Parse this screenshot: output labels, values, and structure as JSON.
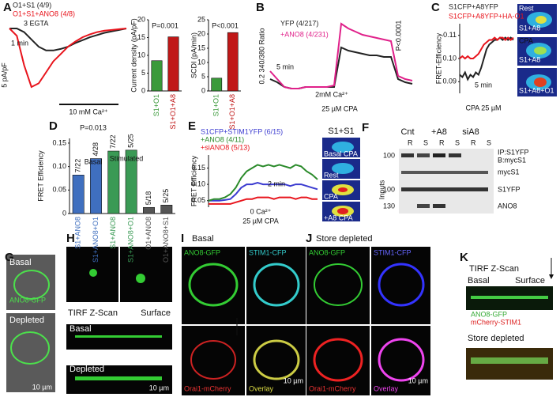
{
  "panel_labels": [
    "A",
    "B",
    "C",
    "D",
    "E",
    "F",
    "G",
    "H",
    "I",
    "J",
    "K"
  ],
  "chart_data": [
    {
      "type": "line",
      "annotations": [
        "1 min",
        "5 pA/pF",
        "3 EGTA",
        "10 mM Ca²⁺"
      ],
      "x": [
        0,
        1,
        2,
        3,
        4,
        5,
        6,
        7,
        8,
        9,
        10,
        11,
        12,
        13,
        14,
        15,
        16
      ],
      "series": [
        {
          "name": "O1+S1 (4/9)",
          "color": "#222222",
          "values": [
            0,
            0,
            -0.5,
            -1.5,
            -2.5,
            -3,
            -3,
            -2.8,
            -2.5,
            -2,
            -1.6,
            -1.2,
            -0.9,
            -0.6,
            -0.4,
            -0.2,
            0
          ]
        },
        {
          "name": "O1+S1+ANO8 (4/8)",
          "color": "#e8141c",
          "values": [
            0,
            -1,
            -5,
            -8,
            -7.5,
            -6,
            -4.5,
            -3.5,
            -2.5,
            -1.8,
            -1.2,
            -0.8,
            -0.5,
            -0.3,
            -0.2,
            -0.1,
            0
          ]
        }
      ]
    },
    {
      "type": "bar",
      "ylabel": "Current density (pA/pF)",
      "annotation": "P=0.001",
      "categories": [
        "S1+O1",
        "S1+O1+A8"
      ],
      "values": [
        8.5,
        15.2
      ],
      "colors": [
        "#3a9a3a",
        "#c01818"
      ],
      "ylim": [
        0,
        20
      ],
      "yticks": [
        0,
        5,
        10,
        15,
        20
      ]
    },
    {
      "type": "bar",
      "ylabel": "SCDI (pA/min)",
      "annotation": "P<0.001",
      "categories": [
        "S1+O1",
        "S1+O1+A8"
      ],
      "values": [
        4.5,
        20.5
      ],
      "colors": [
        "#3a9a3a",
        "#c01818"
      ],
      "ylim": [
        0,
        25
      ],
      "yticks": [
        0,
        5,
        10,
        15,
        20,
        25
      ]
    },
    {
      "type": "line",
      "ylabel": "0.2 340/380 Ratio",
      "annotations": [
        "P<0.0001",
        "5 min",
        "2mM Ca²⁺",
        "25 µM CPA"
      ],
      "x": [
        0,
        1,
        2,
        3,
        4,
        5,
        6,
        7,
        8,
        9,
        10,
        11,
        12,
        13,
        14,
        15,
        16,
        17,
        18,
        19,
        20
      ],
      "series": [
        {
          "name": "YFP (4/217)",
          "color": "#222222",
          "values": [
            0.1,
            0.08,
            0.05,
            0.04,
            0.04,
            0.05,
            0.05,
            0.05,
            0.05,
            0.05,
            0.3,
            0.28,
            0.27,
            0.26,
            0.25,
            0.25,
            0.24,
            0.24,
            0.1,
            0.08,
            0.07
          ]
        },
        {
          "name": "+ANO8 (4/231)",
          "color": "#e0218a",
          "values": [
            0.15,
            0.1,
            0.05,
            0.04,
            0.04,
            0.05,
            0.05,
            0.05,
            0.05,
            0.06,
            0.45,
            0.42,
            0.4,
            0.38,
            0.37,
            0.36,
            0.35,
            0.34,
            0.12,
            0.1,
            0.09
          ]
        }
      ]
    },
    {
      "type": "line",
      "ylabel": "FRET-Efficiency",
      "annotations": [
        "5 min",
        "CPA 25 µM"
      ],
      "x": [
        0,
        1,
        2,
        3,
        4,
        5,
        6,
        7,
        8,
        9,
        10,
        11,
        12,
        13,
        14,
        15,
        16,
        17,
        18,
        19,
        20
      ],
      "ylim": [
        0.085,
        0.115
      ],
      "yticks": [
        0.09,
        {
          "value": 0.1,
          "label": "0.10"
        },
        0.11
      ],
      "series": [
        {
          "name": "S1CFP+A8YFP",
          "color": "#222222",
          "values": [
            0.093,
            0.092,
            0.094,
            0.091,
            0.093,
            0.092,
            0.094,
            0.093,
            0.096,
            0.1,
            0.104,
            0.106,
            0.107,
            0.108,
            0.108,
            0.109,
            0.108,
            0.109,
            0.108,
            0.109,
            0.108
          ]
        },
        {
          "name": "S1CFP+A8YFP+HA-O1",
          "color": "#e8141c",
          "values": [
            0.1,
            0.101,
            0.1,
            0.101,
            0.1,
            0.1,
            0.101,
            0.102,
            0.104,
            0.106,
            0.107,
            0.108,
            0.108,
            0.109,
            0.108,
            0.109,
            0.109,
            0.108,
            0.109,
            0.108,
            0.109
          ]
        }
      ]
    },
    {
      "type": "bar",
      "ylabel": "FRET Efficiency",
      "annotations": [
        "P=0.013",
        "Basal",
        "Stimulated"
      ],
      "categories": [
        "S1+ANO8",
        "S1+ANO8+O1",
        "S1+ANO8",
        "S1+ANO8+O1",
        "O1+ANO8",
        "O1+ANO8+S1"
      ],
      "values": [
        0.082,
        0.117,
        0.133,
        0.135,
        0.013,
        0.018
      ],
      "n_labels": [
        "7/22",
        "4/28",
        "7/22",
        "5/25",
        "5/18",
        "5/25"
      ],
      "colors": [
        "#3f6fbf",
        "#3f6fbf",
        "#3a9a55",
        "#3a9a55",
        "#555555",
        "#555555"
      ],
      "ylim": [
        0,
        0.16
      ],
      "yticks": [
        0,
        0.05,
        {
          "value": 0.1,
          "label": "0.10"
        },
        0.15
      ]
    },
    {
      "type": "line",
      "ylabel": "FRET Efficiency",
      "annotations": [
        "2 min",
        "0 Ca²⁺",
        "25 µM CPA"
      ],
      "x": [
        0,
        1,
        2,
        3,
        4,
        5,
        6,
        7,
        8,
        9,
        10,
        11,
        12,
        13,
        14,
        15,
        16,
        17,
        18,
        19,
        20
      ],
      "ylim": [
        0.03,
        0.19
      ],
      "yticks": [
        0.05,
        {
          "value": 0.1,
          "label": "0.10"
        },
        0.15
      ],
      "series": [
        {
          "name": "S1CFP+STIM1YFP (6/15)",
          "color": "#3b3bd0",
          "values": [
            0.05,
            0.05,
            0.05,
            0.052,
            0.055,
            0.07,
            0.09,
            0.1,
            0.1,
            0.105,
            0.1,
            0.1,
            0.1,
            0.1,
            0.1,
            0.095,
            0.1,
            0.1,
            0.095,
            0.09,
            0.085
          ]
        },
        {
          "name": "+ANO8 (4/11)",
          "color": "#2a8a2a",
          "values": [
            0.05,
            0.055,
            0.055,
            0.06,
            0.07,
            0.09,
            0.12,
            0.14,
            0.15,
            0.16,
            0.155,
            0.16,
            0.155,
            0.16,
            0.155,
            0.15,
            0.16,
            0.155,
            0.14,
            0.13,
            0.115
          ]
        },
        {
          "name": "+siANO8 (5/13)",
          "color": "#e8141c",
          "values": [
            0.04,
            0.04,
            0.04,
            0.04,
            0.04,
            0.045,
            0.05,
            0.055,
            0.055,
            0.06,
            0.06,
            0.06,
            0.055,
            0.06,
            0.06,
            0.06,
            0.055,
            0.06,
            0.06,
            0.055,
            0.055
          ]
        }
      ]
    }
  ],
  "panel_C_images": [
    "Rest",
    "S1+A8",
    "CPA",
    "S1+A8",
    "S1+A8+O1"
  ],
  "panel_E_images": {
    "title": "S1+S1",
    "labels": [
      "Basal CPA",
      "Rest",
      "CPA",
      "+A8 CPA"
    ]
  },
  "panel_F": {
    "lanes": [
      "Cnt",
      "+A8",
      "siA8"
    ],
    "sublanes": [
      "R",
      "S",
      "R",
      "S",
      "R",
      "S"
    ],
    "markers": [
      "100",
      "100",
      "130"
    ],
    "rows": [
      "IP:S1YFP",
      "B:mycS1",
      "mycS1",
      "S1YFP",
      "ANO8"
    ],
    "side": "Inputs"
  },
  "panel_G": {
    "labels": [
      "Basal",
      "ANO8-GFP",
      "Depleted",
      "10 µm"
    ]
  },
  "panel_H": {
    "title": "TIRF Z-Scan",
    "surface": "Surface",
    "labels": [
      "Basal",
      "Depleted"
    ],
    "scale": "10 µm"
  },
  "panel_I": {
    "title": "Basal",
    "labels": [
      "ANO8-GFP",
      "STIM1-CFP",
      "Orai1-mCherry",
      "Overlay"
    ],
    "scale": "10 µm"
  },
  "panel_J": {
    "title": "Store depleted",
    "labels": [
      "ANO8-GFP",
      "STIM1-CFP",
      "Orai1-mCherry",
      "Overlay"
    ],
    "scale": "10 µm"
  },
  "panel_K": {
    "title": "TIRF Z-Scan",
    "labels": [
      "Basal",
      "Surface",
      "ANO8-GFP",
      "mCherry-STIM1",
      "Store depleted"
    ]
  }
}
